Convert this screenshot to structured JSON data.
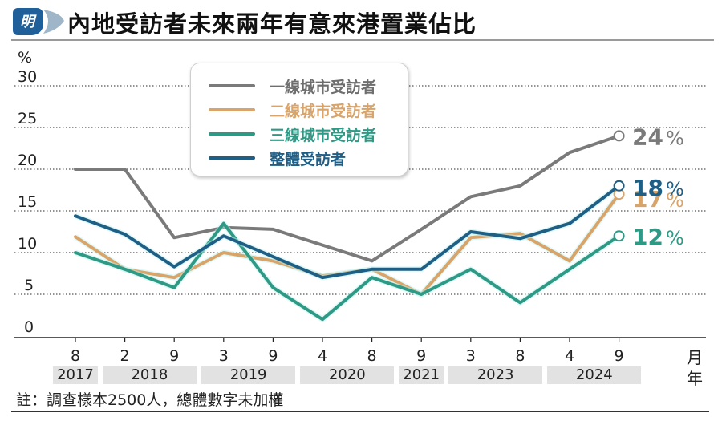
{
  "header": {
    "logo_char": "明",
    "title": "內地受訪者未來兩年有意來港置業佔比"
  },
  "chart_data": {
    "type": "line",
    "title": "內地受訪者未來兩年有意來港置業佔比",
    "ylabel": "%",
    "ylim": [
      0,
      30
    ],
    "yticks": [
      0,
      5,
      10,
      15,
      20,
      25,
      30
    ],
    "grid": true,
    "legend_position": "top-center",
    "x_month_labels": [
      "8",
      "2",
      "9",
      "3",
      "9",
      "4",
      "8",
      "9",
      "3",
      "8",
      "4",
      "9"
    ],
    "x_full": [
      "2017-8",
      "2018-2",
      "2018-9",
      "2019-3",
      "2019-9",
      "2020-4",
      "2020-8",
      "2021-9",
      "2023-3",
      "2023-8",
      "2024-4",
      "2024-9"
    ],
    "year_groups": [
      {
        "year": "2017",
        "start": 0,
        "end": 0
      },
      {
        "year": "2018",
        "start": 1,
        "end": 2
      },
      {
        "year": "2019",
        "start": 3,
        "end": 4
      },
      {
        "year": "2020",
        "start": 5,
        "end": 6
      },
      {
        "year": "2021",
        "start": 7,
        "end": 7
      },
      {
        "year": "2023",
        "start": 8,
        "end": 9
      },
      {
        "year": "2024",
        "start": 10,
        "end": 11
      }
    ],
    "x_unit_month": "月",
    "x_unit_year": "年",
    "series": [
      {
        "name": "一線城市受訪者",
        "color": "#7a7a7a",
        "values": [
          20,
          20,
          11.8,
          13,
          12.8,
          10.9,
          9,
          12.8,
          16.7,
          18,
          22,
          24
        ],
        "end_label": "24",
        "end_suffix": "%"
      },
      {
        "name": "二線城市受訪者",
        "color": "#d9a46a",
        "values": [
          11.9,
          8,
          7,
          10,
          9,
          7.2,
          8,
          5,
          11.8,
          12.3,
          9,
          17
        ],
        "end_label": "17",
        "end_suffix": "%"
      },
      {
        "name": "三線城市受訪者",
        "color": "#2e9a85",
        "values": [
          10,
          8,
          5.8,
          13.5,
          5.8,
          2,
          7,
          5,
          8,
          4,
          8,
          12
        ],
        "end_label": "12",
        "end_suffix": "%"
      },
      {
        "name": "整體受訪者",
        "color": "#1f5f86",
        "values": [
          14.4,
          12.2,
          8.3,
          12,
          9.5,
          7,
          8,
          8,
          12.5,
          11.7,
          13.5,
          18
        ],
        "end_label": "18",
        "end_suffix": "%"
      }
    ]
  },
  "footnote": "註：調查樣本2500人，總體數字未加權"
}
